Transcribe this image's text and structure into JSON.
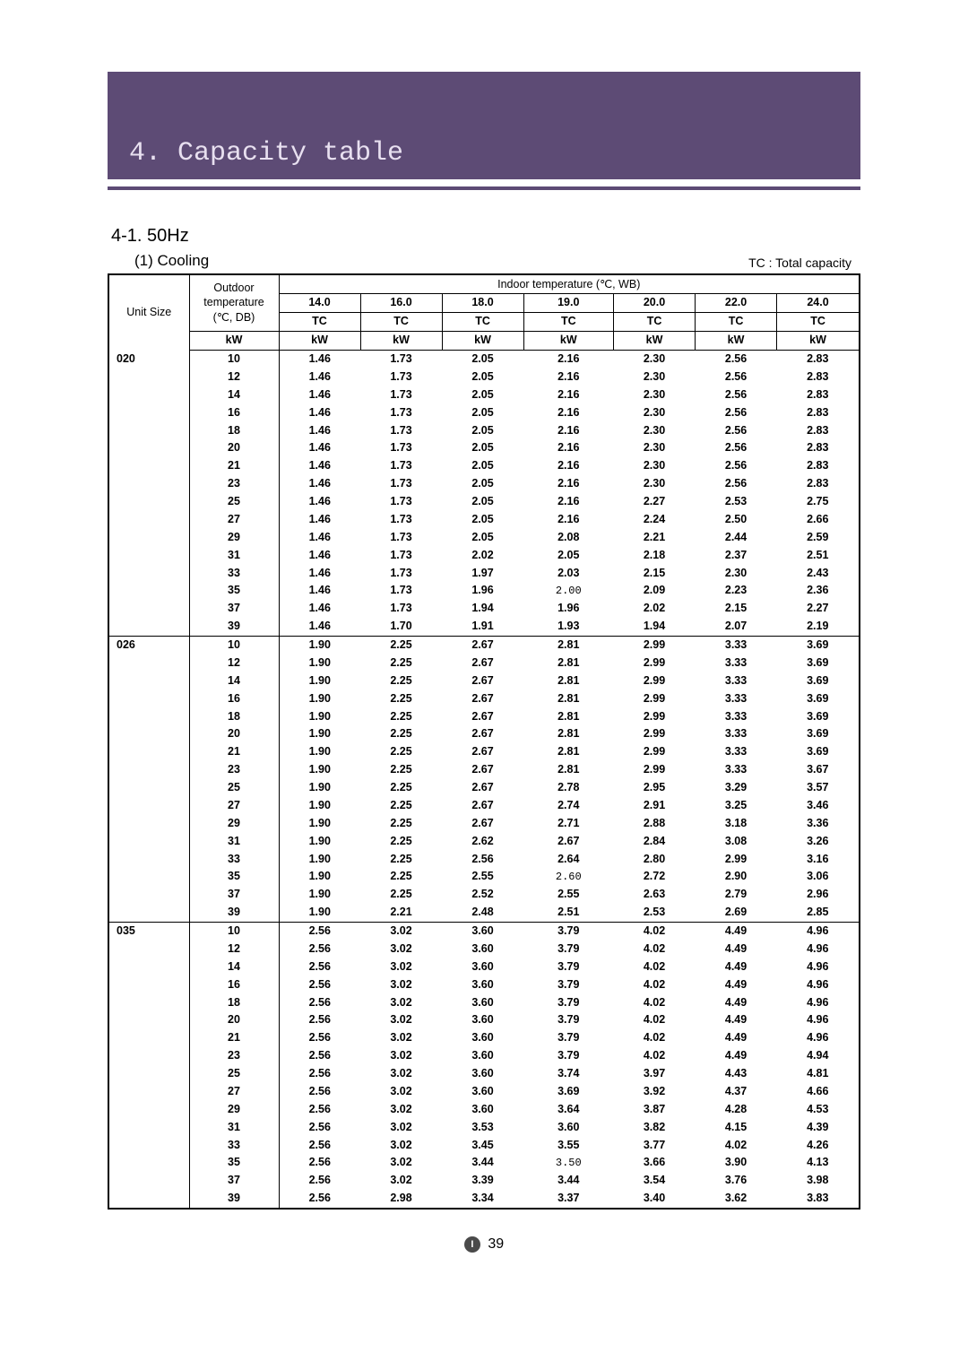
{
  "header": {
    "chapter_title": "4. Capacity table"
  },
  "section": {
    "title": "4-1. 50Hz",
    "sub_title": "(1) Cooling",
    "legend": "TC : Total capacity"
  },
  "table": {
    "corner_label_unit": "Unit Size",
    "corner_label_outdoor": "Outdoor temperature (℃, DB)",
    "indoor_label": "Indoor temperature (℃, WB)",
    "temp_headers": [
      "14.0",
      "16.0",
      "18.0",
      "19.0",
      "20.0",
      "22.0",
      "24.0"
    ],
    "sub_header": "TC",
    "unit_header": "kW",
    "groups": [
      {
        "unit_size": "020",
        "rows": [
          {
            "od": "10",
            "v": [
              "1.46",
              "1.73",
              "2.05",
              "2.16",
              "2.30",
              "2.56",
              "2.83"
            ]
          },
          {
            "od": "12",
            "v": [
              "1.46",
              "1.73",
              "2.05",
              "2.16",
              "2.30",
              "2.56",
              "2.83"
            ]
          },
          {
            "od": "14",
            "v": [
              "1.46",
              "1.73",
              "2.05",
              "2.16",
              "2.30",
              "2.56",
              "2.83"
            ]
          },
          {
            "od": "16",
            "v": [
              "1.46",
              "1.73",
              "2.05",
              "2.16",
              "2.30",
              "2.56",
              "2.83"
            ]
          },
          {
            "od": "18",
            "v": [
              "1.46",
              "1.73",
              "2.05",
              "2.16",
              "2.30",
              "2.56",
              "2.83"
            ]
          },
          {
            "od": "20",
            "v": [
              "1.46",
              "1.73",
              "2.05",
              "2.16",
              "2.30",
              "2.56",
              "2.83"
            ]
          },
          {
            "od": "21",
            "v": [
              "1.46",
              "1.73",
              "2.05",
              "2.16",
              "2.30",
              "2.56",
              "2.83"
            ]
          },
          {
            "od": "23",
            "v": [
              "1.46",
              "1.73",
              "2.05",
              "2.16",
              "2.30",
              "2.56",
              "2.83"
            ]
          },
          {
            "od": "25",
            "v": [
              "1.46",
              "1.73",
              "2.05",
              "2.16",
              "2.27",
              "2.53",
              "2.75"
            ]
          },
          {
            "od": "27",
            "v": [
              "1.46",
              "1.73",
              "2.05",
              "2.16",
              "2.24",
              "2.50",
              "2.66"
            ]
          },
          {
            "od": "29",
            "v": [
              "1.46",
              "1.73",
              "2.05",
              "2.08",
              "2.21",
              "2.44",
              "2.59"
            ]
          },
          {
            "od": "31",
            "v": [
              "1.46",
              "1.73",
              "2.02",
              "2.05",
              "2.18",
              "2.37",
              "2.51"
            ]
          },
          {
            "od": "33",
            "v": [
              "1.46",
              "1.73",
              "1.97",
              "2.03",
              "2.15",
              "2.30",
              "2.43"
            ]
          },
          {
            "od": "35",
            "v": [
              "1.46",
              "1.73",
              "1.96",
              "2.00",
              "2.09",
              "2.23",
              "2.36"
            ],
            "light": [
              3
            ]
          },
          {
            "od": "37",
            "v": [
              "1.46",
              "1.73",
              "1.94",
              "1.96",
              "2.02",
              "2.15",
              "2.27"
            ]
          },
          {
            "od": "39",
            "v": [
              "1.46",
              "1.70",
              "1.91",
              "1.93",
              "1.94",
              "2.07",
              "2.19"
            ]
          }
        ]
      },
      {
        "unit_size": "026",
        "rows": [
          {
            "od": "10",
            "v": [
              "1.90",
              "2.25",
              "2.67",
              "2.81",
              "2.99",
              "3.33",
              "3.69"
            ]
          },
          {
            "od": "12",
            "v": [
              "1.90",
              "2.25",
              "2.67",
              "2.81",
              "2.99",
              "3.33",
              "3.69"
            ]
          },
          {
            "od": "14",
            "v": [
              "1.90",
              "2.25",
              "2.67",
              "2.81",
              "2.99",
              "3.33",
              "3.69"
            ]
          },
          {
            "od": "16",
            "v": [
              "1.90",
              "2.25",
              "2.67",
              "2.81",
              "2.99",
              "3.33",
              "3.69"
            ]
          },
          {
            "od": "18",
            "v": [
              "1.90",
              "2.25",
              "2.67",
              "2.81",
              "2.99",
              "3.33",
              "3.69"
            ]
          },
          {
            "od": "20",
            "v": [
              "1.90",
              "2.25",
              "2.67",
              "2.81",
              "2.99",
              "3.33",
              "3.69"
            ]
          },
          {
            "od": "21",
            "v": [
              "1.90",
              "2.25",
              "2.67",
              "2.81",
              "2.99",
              "3.33",
              "3.69"
            ]
          },
          {
            "od": "23",
            "v": [
              "1.90",
              "2.25",
              "2.67",
              "2.81",
              "2.99",
              "3.33",
              "3.67"
            ]
          },
          {
            "od": "25",
            "v": [
              "1.90",
              "2.25",
              "2.67",
              "2.78",
              "2.95",
              "3.29",
              "3.57"
            ]
          },
          {
            "od": "27",
            "v": [
              "1.90",
              "2.25",
              "2.67",
              "2.74",
              "2.91",
              "3.25",
              "3.46"
            ]
          },
          {
            "od": "29",
            "v": [
              "1.90",
              "2.25",
              "2.67",
              "2.71",
              "2.88",
              "3.18",
              "3.36"
            ]
          },
          {
            "od": "31",
            "v": [
              "1.90",
              "2.25",
              "2.62",
              "2.67",
              "2.84",
              "3.08",
              "3.26"
            ]
          },
          {
            "od": "33",
            "v": [
              "1.90",
              "2.25",
              "2.56",
              "2.64",
              "2.80",
              "2.99",
              "3.16"
            ]
          },
          {
            "od": "35",
            "v": [
              "1.90",
              "2.25",
              "2.55",
              "2.60",
              "2.72",
              "2.90",
              "3.06"
            ],
            "light": [
              3
            ]
          },
          {
            "od": "37",
            "v": [
              "1.90",
              "2.25",
              "2.52",
              "2.55",
              "2.63",
              "2.79",
              "2.96"
            ]
          },
          {
            "od": "39",
            "v": [
              "1.90",
              "2.21",
              "2.48",
              "2.51",
              "2.53",
              "2.69",
              "2.85"
            ]
          }
        ]
      },
      {
        "unit_size": "035",
        "rows": [
          {
            "od": "10",
            "v": [
              "2.56",
              "3.02",
              "3.60",
              "3.79",
              "4.02",
              "4.49",
              "4.96"
            ]
          },
          {
            "od": "12",
            "v": [
              "2.56",
              "3.02",
              "3.60",
              "3.79",
              "4.02",
              "4.49",
              "4.96"
            ]
          },
          {
            "od": "14",
            "v": [
              "2.56",
              "3.02",
              "3.60",
              "3.79",
              "4.02",
              "4.49",
              "4.96"
            ]
          },
          {
            "od": "16",
            "v": [
              "2.56",
              "3.02",
              "3.60",
              "3.79",
              "4.02",
              "4.49",
              "4.96"
            ]
          },
          {
            "od": "18",
            "v": [
              "2.56",
              "3.02",
              "3.60",
              "3.79",
              "4.02",
              "4.49",
              "4.96"
            ]
          },
          {
            "od": "20",
            "v": [
              "2.56",
              "3.02",
              "3.60",
              "3.79",
              "4.02",
              "4.49",
              "4.96"
            ]
          },
          {
            "od": "21",
            "v": [
              "2.56",
              "3.02",
              "3.60",
              "3.79",
              "4.02",
              "4.49",
              "4.96"
            ]
          },
          {
            "od": "23",
            "v": [
              "2.56",
              "3.02",
              "3.60",
              "3.79",
              "4.02",
              "4.49",
              "4.94"
            ]
          },
          {
            "od": "25",
            "v": [
              "2.56",
              "3.02",
              "3.60",
              "3.74",
              "3.97",
              "4.43",
              "4.81"
            ]
          },
          {
            "od": "27",
            "v": [
              "2.56",
              "3.02",
              "3.60",
              "3.69",
              "3.92",
              "4.37",
              "4.66"
            ]
          },
          {
            "od": "29",
            "v": [
              "2.56",
              "3.02",
              "3.60",
              "3.64",
              "3.87",
              "4.28",
              "4.53"
            ]
          },
          {
            "od": "31",
            "v": [
              "2.56",
              "3.02",
              "3.53",
              "3.60",
              "3.82",
              "4.15",
              "4.39"
            ]
          },
          {
            "od": "33",
            "v": [
              "2.56",
              "3.02",
              "3.45",
              "3.55",
              "3.77",
              "4.02",
              "4.26"
            ]
          },
          {
            "od": "35",
            "v": [
              "2.56",
              "3.02",
              "3.44",
              "3.50",
              "3.66",
              "3.90",
              "4.13"
            ],
            "light": [
              3
            ]
          },
          {
            "od": "37",
            "v": [
              "2.56",
              "3.02",
              "3.39",
              "3.44",
              "3.54",
              "3.76",
              "3.98"
            ]
          },
          {
            "od": "39",
            "v": [
              "2.56",
              "2.98",
              "3.34",
              "3.37",
              "3.40",
              "3.62",
              "3.83"
            ]
          }
        ]
      }
    ]
  },
  "footer": {
    "page_number": "39"
  }
}
